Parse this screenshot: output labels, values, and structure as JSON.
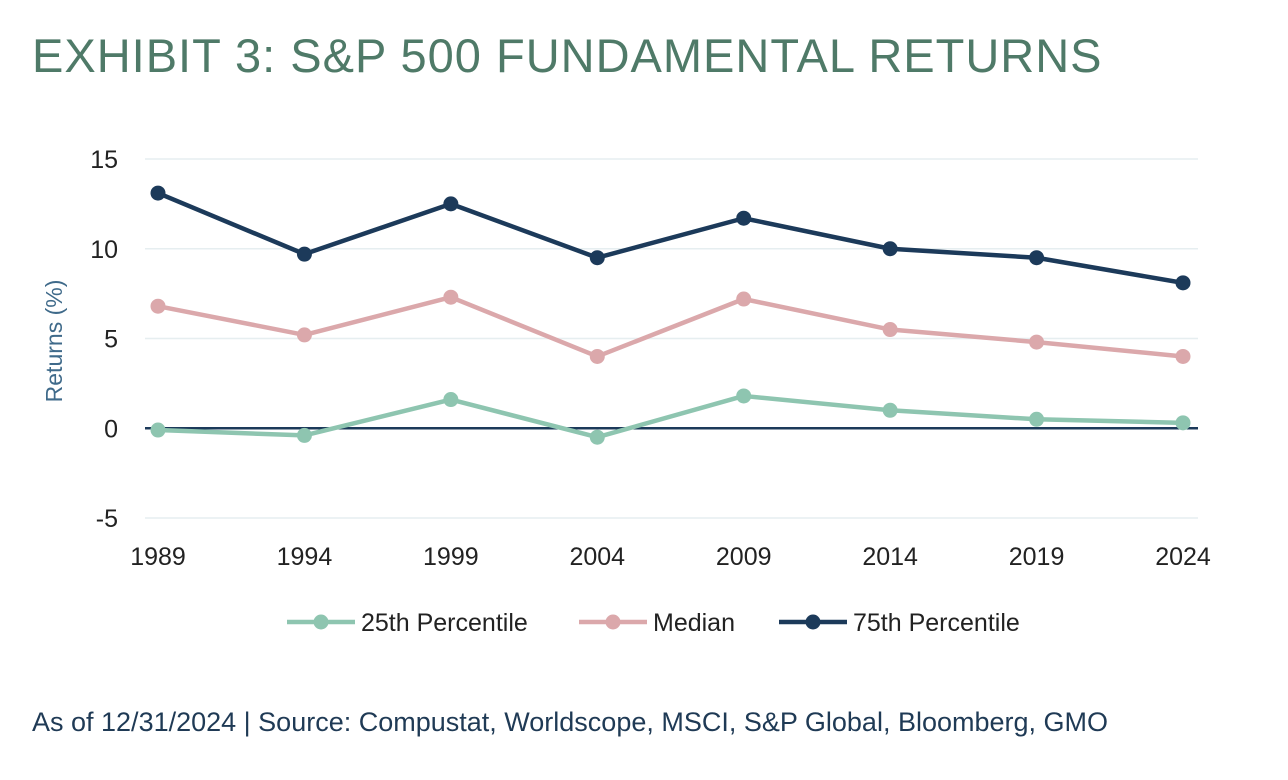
{
  "title": "EXHIBIT 3: S&P 500 FUNDAMENTAL RETURNS",
  "footnote": "As of 12/31/2024 | Source: Compustat, Worldscope, MSCI, S&P Global, Bloomberg, GMO",
  "chart_data": {
    "type": "line",
    "title": "",
    "xlabel": "",
    "ylabel": "Returns (%)",
    "categories": [
      "1989",
      "1994",
      "1999",
      "2004",
      "2009",
      "2014",
      "2019",
      "2024"
    ],
    "ylim": [
      -5,
      15
    ],
    "yticks": [
      15,
      10,
      5,
      0,
      -5
    ],
    "grid": true,
    "legend_position": "bottom",
    "series": [
      {
        "name": "25th Percentile",
        "color": "#8ec5b0",
        "values": [
          -0.1,
          -0.4,
          1.6,
          -0.5,
          1.8,
          1.0,
          0.5,
          0.3
        ]
      },
      {
        "name": "Median",
        "color": "#dba8ab",
        "values": [
          6.8,
          5.2,
          7.3,
          4.0,
          7.2,
          5.5,
          4.8,
          4.0
        ]
      },
      {
        "name": "75th Percentile",
        "color": "#1c3a5a",
        "values": [
          13.1,
          9.7,
          12.5,
          9.5,
          11.7,
          10.0,
          9.5,
          8.1
        ]
      }
    ]
  }
}
